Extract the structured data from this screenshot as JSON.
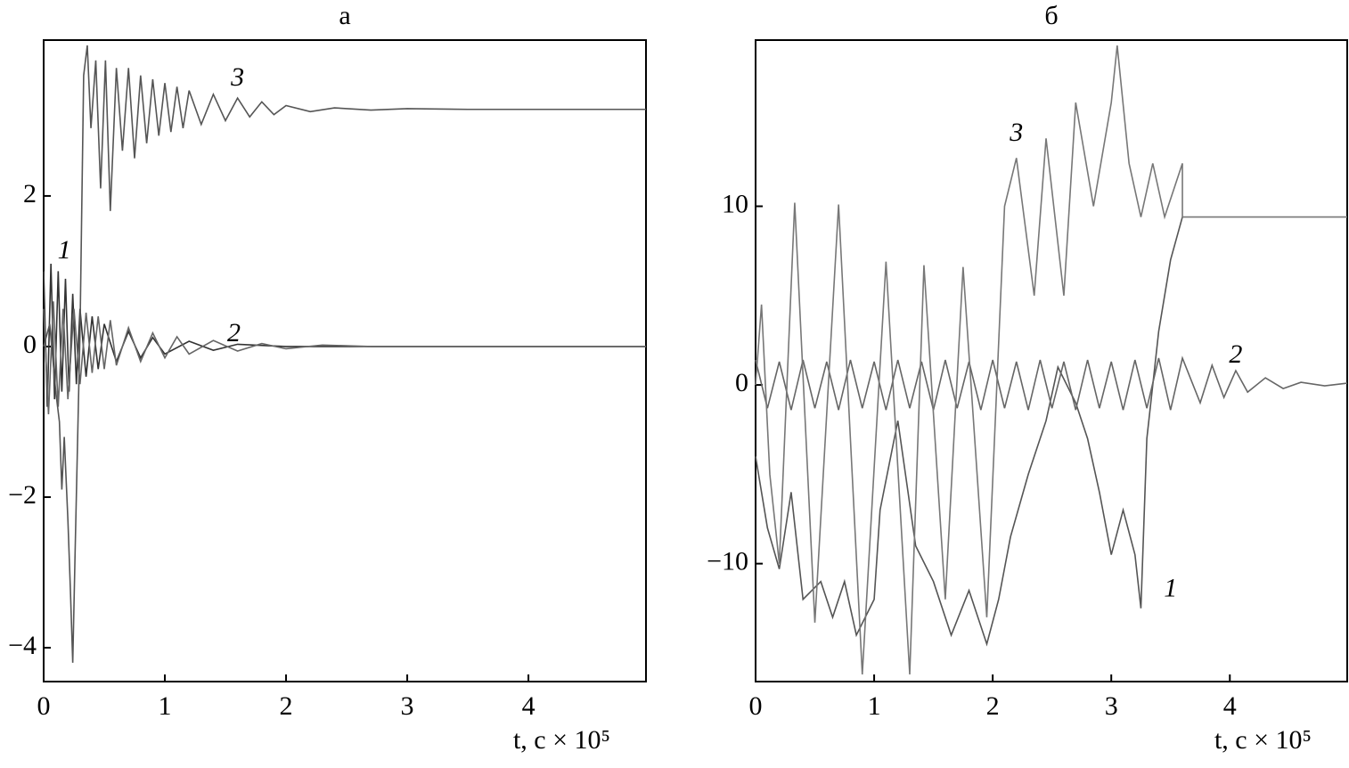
{
  "chart_data": [
    {
      "type": "line",
      "title": "а",
      "xlabel": "t, с × 10⁵",
      "xlim": [
        0,
        4.97
      ],
      "ylim": [
        -4.45,
        4.07
      ],
      "xticks": [
        0,
        1,
        2,
        3,
        4
      ],
      "yticks": [
        {
          "value": -4,
          "label": "−4"
        },
        {
          "value": -2,
          "label": "−2"
        },
        0,
        2
      ],
      "series": [
        {
          "name": "1",
          "color": "#333333",
          "x": [
            0,
            0.03,
            0.06,
            0.09,
            0.12,
            0.15,
            0.18,
            0.21,
            0.24,
            0.27,
            0.3,
            0.35,
            0.4,
            0.45,
            0.5,
            0.6,
            0.7,
            0.8,
            0.9,
            1.0,
            1.2,
            1.4,
            1.6,
            2.0,
            4.97
          ],
          "values": [
            1.0,
            -0.8,
            1.1,
            -0.7,
            1.0,
            -0.6,
            0.9,
            -0.6,
            0.7,
            -0.5,
            0.5,
            -0.4,
            0.4,
            -0.3,
            0.3,
            -0.2,
            0.2,
            -0.15,
            0.12,
            -0.1,
            0.07,
            -0.05,
            0.03,
            0,
            0
          ]
        },
        {
          "name": "2",
          "color": "#666666",
          "x": [
            0,
            0.04,
            0.08,
            0.12,
            0.16,
            0.2,
            0.25,
            0.3,
            0.35,
            0.4,
            0.45,
            0.5,
            0.55,
            0.6,
            0.7,
            0.8,
            0.9,
            1.0,
            1.1,
            1.2,
            1.4,
            1.6,
            1.8,
            2.0,
            2.3,
            2.7,
            4.97
          ],
          "values": [
            0.5,
            -0.9,
            0.6,
            -0.8,
            0.5,
            -0.7,
            0.5,
            -0.5,
            0.45,
            -0.35,
            0.4,
            -0.3,
            0.35,
            -0.25,
            0.25,
            -0.2,
            0.18,
            -0.15,
            0.13,
            -0.1,
            0.08,
            -0.06,
            0.04,
            -0.03,
            0.02,
            0,
            0
          ]
        },
        {
          "name": "3",
          "color": "#555555",
          "x": [
            0,
            0.05,
            0.1,
            0.13,
            0.15,
            0.17,
            0.2,
            0.22,
            0.24,
            0.26,
            0.3,
            0.33,
            0.36,
            0.39,
            0.43,
            0.47,
            0.51,
            0.55,
            0.6,
            0.65,
            0.7,
            0.75,
            0.8,
            0.85,
            0.9,
            0.95,
            1.0,
            1.05,
            1.1,
            1.15,
            1.2,
            1.3,
            1.4,
            1.5,
            1.6,
            1.7,
            1.8,
            1.9,
            2.0,
            2.2,
            2.4,
            2.7,
            3.0,
            3.5,
            4.97
          ],
          "values": [
            0,
            0.3,
            -0.6,
            -1.0,
            -1.9,
            -1.2,
            -2.3,
            -3.2,
            -4.2,
            -2.7,
            0.2,
            3.6,
            4.0,
            2.9,
            3.8,
            2.1,
            3.8,
            1.8,
            3.7,
            2.6,
            3.7,
            2.5,
            3.6,
            2.7,
            3.55,
            2.8,
            3.5,
            2.85,
            3.45,
            2.9,
            3.4,
            2.95,
            3.35,
            3.0,
            3.3,
            3.05,
            3.25,
            3.08,
            3.2,
            3.12,
            3.17,
            3.14,
            3.16,
            3.15,
            3.15
          ]
        }
      ]
    },
    {
      "type": "line",
      "title": "б",
      "xlabel": "t, с × 10⁵",
      "xlim": [
        0,
        4.99
      ],
      "ylim": [
        -16.6,
        19.3
      ],
      "xticks": [
        0,
        1,
        2,
        3,
        4
      ],
      "yticks": [
        {
          "value": -10,
          "label": "−10"
        },
        0,
        10
      ],
      "series": [
        {
          "name": "1",
          "color": "#555555",
          "x": [
            0,
            0.1,
            0.2,
            0.3,
            0.4,
            0.55,
            0.65,
            0.75,
            0.85,
            1.0,
            1.05,
            1.2,
            1.35,
            1.5,
            1.65,
            1.8,
            1.95,
            2.05,
            2.15,
            2.3,
            2.45,
            2.55,
            2.7,
            2.8,
            2.9,
            3.0,
            3.1,
            3.2,
            3.25,
            3.3,
            3.4,
            3.5,
            3.6
          ],
          "values": [
            -4,
            -8,
            -10.3,
            -6,
            -12,
            -11,
            -13,
            -11,
            -14,
            -12,
            -7,
            -2,
            -9,
            -11,
            -14,
            -11.5,
            -14.5,
            -12,
            -8.5,
            -5,
            -2,
            1,
            -1,
            -3,
            -6,
            -9.5,
            -7,
            -9.5,
            -12.5,
            -3,
            3,
            7,
            9.4
          ]
        },
        {
          "name": "2",
          "color": "#666666",
          "x": [
            0,
            0.1,
            0.2,
            0.3,
            0.4,
            0.5,
            0.6,
            0.7,
            0.8,
            0.9,
            1.0,
            1.1,
            1.2,
            1.3,
            1.4,
            1.5,
            1.6,
            1.7,
            1.8,
            1.9,
            2.0,
            2.1,
            2.2,
            2.3,
            2.4,
            2.5,
            2.6,
            2.7,
            2.8,
            2.9,
            3.0,
            3.1,
            3.2,
            3.3,
            3.4,
            3.5,
            3.6,
            3.75,
            3.85,
            3.95,
            4.05,
            4.15,
            4.3,
            4.45,
            4.6,
            4.8,
            4.99
          ],
          "values": [
            1.4,
            -1.3,
            1.3,
            -1.4,
            1.4,
            -1.3,
            1.3,
            -1.4,
            1.4,
            -1.3,
            1.3,
            -1.4,
            1.4,
            -1.3,
            1.3,
            -1.4,
            1.4,
            -1.3,
            1.3,
            -1.4,
            1.4,
            -1.3,
            1.3,
            -1.4,
            1.4,
            -1.3,
            1.3,
            -1.4,
            1.4,
            -1.3,
            1.3,
            -1.4,
            1.4,
            -1.3,
            1.5,
            -1.4,
            1.5,
            -1.0,
            1.1,
            -0.7,
            0.8,
            -0.4,
            0.4,
            -0.2,
            0.15,
            -0.05,
            0.1
          ]
        },
        {
          "name": "3",
          "color": "#777777",
          "x": [
            0,
            0.05,
            0.12,
            0.2,
            0.33,
            0.5,
            0.7,
            0.9,
            1.1,
            1.3,
            1.42,
            1.6,
            1.75,
            1.95,
            2.1,
            2.2,
            2.35,
            2.45,
            2.6,
            2.7,
            2.85,
            3.0,
            3.05,
            3.15,
            3.25,
            3.35,
            3.45,
            3.6,
            3.6,
            4.99
          ],
          "values": [
            0,
            4.5,
            -5,
            -10,
            10.2,
            -13.3,
            10.1,
            -16.2,
            6.9,
            -16.2,
            6.7,
            -12,
            6.6,
            -13,
            10,
            12.7,
            5,
            13.8,
            5,
            15.8,
            10,
            15.8,
            19,
            12.4,
            9.4,
            12.4,
            9.4,
            12.4,
            9.4,
            9.4
          ]
        }
      ]
    }
  ]
}
